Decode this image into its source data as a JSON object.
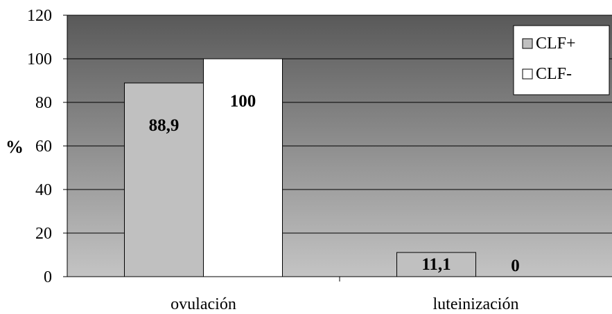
{
  "chart_data": {
    "type": "bar",
    "title": "",
    "xlabel": "",
    "ylabel": "%",
    "ylim": [
      0,
      120
    ],
    "yticks": [
      0,
      20,
      40,
      60,
      80,
      100,
      120
    ],
    "grid": true,
    "legend_position": "top-right",
    "categories": [
      "ovulación",
      "luteinización"
    ],
    "series": [
      {
        "name": "CLF+",
        "values": [
          88.9,
          11.1
        ],
        "labels": [
          "88,9",
          "11,1"
        ],
        "color": "#c0c0c0"
      },
      {
        "name": "CLF-",
        "values": [
          100,
          0
        ],
        "labels": [
          "100",
          "0"
        ],
        "color": "#ffffff"
      }
    ],
    "colors": {
      "plot_top": "#595959",
      "plot_bottom": "#c4c4c4",
      "grid": "#000000"
    }
  }
}
